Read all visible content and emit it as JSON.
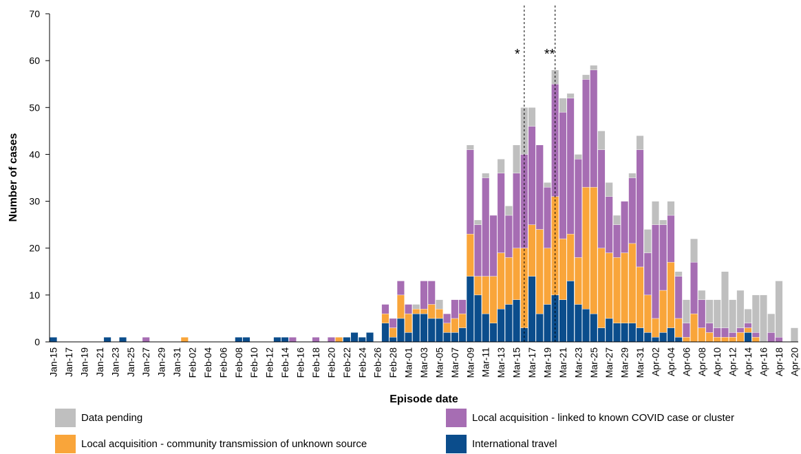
{
  "chart_data": {
    "type": "stacked-bar",
    "y_label": "Number of cases",
    "x_label": "Episode date",
    "annotations": [
      "*",
      "**"
    ],
    "categories": [
      "Jan-15",
      null,
      "Jan-17",
      null,
      "Jan-19",
      null,
      "Jan-21",
      null,
      "Jan-23",
      null,
      "Jan-25",
      null,
      "Jan-27",
      null,
      "Jan-29",
      null,
      "Jan-31",
      null,
      "Feb-02",
      null,
      "Feb-04",
      null,
      "Feb-06",
      null,
      "Feb-08",
      null,
      "Feb-10",
      null,
      "Feb-12",
      null,
      "Feb-14",
      null,
      "Feb-16",
      null,
      "Feb-18",
      null,
      "Feb-20",
      null,
      "Feb-22",
      null,
      "Feb-24",
      null,
      "Feb-26",
      null,
      "Feb-28",
      null,
      "Mar-01",
      null,
      "Mar-03",
      null,
      "Mar-05",
      null,
      "Mar-07",
      null,
      "Mar-09",
      null,
      "Mar-11",
      null,
      "Mar-13",
      null,
      "Mar-15",
      null,
      "Mar-17",
      null,
      "Mar-19",
      null,
      "Mar-21",
      null,
      "Mar-23",
      null,
      "Mar-25",
      null,
      "Mar-27",
      null,
      "Mar-29",
      null,
      "Mar-31",
      null,
      "Apr-02",
      null,
      "Apr-04",
      null,
      "Apr-06",
      null,
      "Apr-08",
      null,
      "Apr-10",
      null,
      "Apr-12",
      null,
      "Apr-14",
      null,
      "Apr-16",
      null,
      "Apr-18",
      null,
      "Apr-20"
    ],
    "series": [
      {
        "name": "International travel",
        "color": "#0b4d8c",
        "values": [
          1,
          0,
          0,
          0,
          0,
          0,
          0,
          1,
          0,
          1,
          0,
          0,
          0,
          0,
          0,
          0,
          0,
          0,
          0,
          0,
          0,
          0,
          0,
          0,
          1,
          1,
          0,
          0,
          0,
          1,
          1,
          0,
          0,
          0,
          0,
          0,
          0,
          0,
          1,
          2,
          1,
          2,
          0,
          4,
          1,
          5,
          2,
          6,
          6,
          5,
          5,
          2,
          2,
          3,
          14,
          10,
          6,
          4,
          7,
          8,
          9,
          3,
          14,
          6,
          8,
          10,
          9,
          13,
          8,
          7,
          6,
          3,
          5,
          4,
          4,
          4,
          3,
          2,
          1,
          2,
          3,
          1,
          0,
          0,
          0,
          0,
          0,
          0,
          0,
          0,
          2,
          0,
          0,
          0,
          0,
          0,
          0
        ]
      },
      {
        "name": "Local acquisition - community transmission of unknown source",
        "color": "#f9a53a",
        "values": [
          0,
          0,
          0,
          0,
          0,
          0,
          0,
          0,
          0,
          0,
          0,
          0,
          0,
          0,
          0,
          0,
          0,
          1,
          0,
          0,
          0,
          0,
          0,
          0,
          0,
          0,
          0,
          0,
          0,
          0,
          0,
          0,
          0,
          0,
          0,
          0,
          0,
          1,
          0,
          0,
          0,
          0,
          0,
          2,
          2,
          5,
          4,
          1,
          1,
          3,
          2,
          2,
          3,
          3,
          9,
          4,
          8,
          10,
          12,
          10,
          11,
          17,
          11,
          18,
          12,
          21,
          13,
          10,
          10,
          26,
          27,
          17,
          14,
          14,
          15,
          17,
          13,
          8,
          4,
          9,
          14,
          4,
          1,
          6,
          3,
          2,
          1,
          1,
          1,
          2,
          1,
          1,
          0,
          0,
          0,
          0,
          0
        ]
      },
      {
        "name": "Local acquisition - linked to known COVID case or cluster",
        "color": "#a66db3",
        "values": [
          0,
          0,
          0,
          0,
          0,
          0,
          0,
          0,
          0,
          0,
          0,
          0,
          1,
          0,
          0,
          0,
          0,
          0,
          0,
          0,
          0,
          0,
          0,
          0,
          0,
          0,
          0,
          0,
          0,
          0,
          0,
          1,
          0,
          0,
          1,
          0,
          1,
          0,
          0,
          0,
          0,
          0,
          0,
          2,
          2,
          3,
          2,
          0,
          6,
          5,
          0,
          2,
          4,
          3,
          18,
          11,
          21,
          13,
          17,
          9,
          16,
          20,
          21,
          18,
          13,
          24,
          27,
          29,
          21,
          23,
          25,
          21,
          12,
          7,
          11,
          14,
          25,
          9,
          20,
          14,
          10,
          9,
          3,
          11,
          6,
          2,
          2,
          2,
          1,
          1,
          1,
          1,
          0,
          2,
          1,
          0,
          0
        ]
      },
      {
        "name": "Data pending",
        "color": "#bfbfbf",
        "values": [
          0,
          0,
          0,
          0,
          0,
          0,
          0,
          0,
          0,
          0,
          0,
          0,
          0,
          0,
          0,
          0,
          0,
          0,
          0,
          0,
          0,
          0,
          0,
          0,
          0,
          0,
          0,
          0,
          0,
          0,
          0,
          0,
          0,
          0,
          0,
          0,
          0,
          0,
          0,
          0,
          0,
          0,
          0,
          0,
          0,
          0,
          0,
          1,
          0,
          0,
          2,
          0,
          0,
          0,
          1,
          1,
          1,
          0,
          3,
          2,
          6,
          10,
          4,
          0,
          1,
          3,
          3,
          1,
          1,
          1,
          1,
          4,
          3,
          2,
          0,
          1,
          3,
          5,
          5,
          1,
          3,
          1,
          5,
          5,
          2,
          5,
          6,
          12,
          7,
          8,
          3,
          8,
          10,
          4,
          12,
          0,
          3
        ]
      }
    ],
    "ylim": [
      0,
      70
    ],
    "yticks": [
      0,
      10,
      20,
      30,
      40,
      50,
      60,
      70
    ],
    "grid": false
  }
}
